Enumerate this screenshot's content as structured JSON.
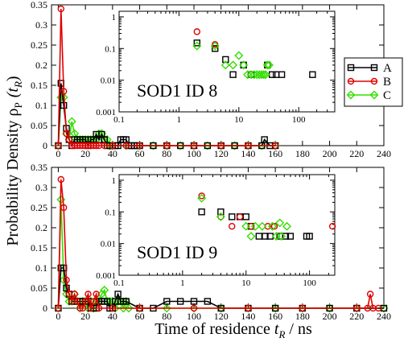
{
  "figure": {
    "ylabel_main": "Probability Density ρ",
    "ylabel_sub": "P",
    "ylabel_arg": "(t",
    "ylabel_argsub": "R",
    "ylabel_close": ")",
    "xlabel_main": "Time of residence ",
    "xlabel_var": "t",
    "xlabel_sub": "R",
    "xlabel_unit": " / ns"
  },
  "colors": {
    "A": "#000000",
    "B": "#e00000",
    "C": "#33dd00"
  },
  "chart_data": [
    {
      "type": "line",
      "panel": "top",
      "xlim": [
        -5,
        240
      ],
      "ylim": [
        0,
        0.35
      ],
      "xticks": [
        0,
        20,
        40,
        60,
        80,
        100,
        120,
        140,
        160,
        180,
        200,
        220,
        240
      ],
      "yticks": [
        0,
        0.05,
        0.1,
        0.15,
        0.2,
        0.25,
        0.3,
        0.35
      ],
      "ytick_labels": [
        "0",
        "0.05",
        "0.1",
        "0.15",
        "0.2",
        "0.25",
        "0.3",
        "0.35"
      ],
      "legend": [
        "A",
        "B",
        "C"
      ],
      "series": [
        {
          "name": "A",
          "marker": "square",
          "x": [
            0,
            2,
            4,
            6,
            8,
            10,
            12,
            14,
            16,
            18,
            20,
            22,
            24,
            26,
            28,
            30,
            32,
            34,
            36,
            38,
            40,
            42,
            44,
            46,
            48,
            50,
            52,
            54,
            56,
            58,
            60,
            70,
            80,
            90,
            100,
            110,
            120,
            130,
            140,
            150,
            152,
            156,
            160
          ],
          "y": [
            0,
            0.155,
            0.1,
            0.043,
            0.015,
            0,
            0.015,
            0.015,
            0.015,
            0.015,
            0.015,
            0,
            0.015,
            0.015,
            0.028,
            0.015,
            0.028,
            0.015,
            0,
            0,
            0,
            0,
            0,
            0.015,
            0.015,
            0.015,
            0,
            0,
            0,
            0,
            0,
            0,
            0,
            0,
            0,
            0,
            0,
            0,
            0,
            0,
            0.015,
            0,
            0
          ]
        },
        {
          "name": "B",
          "marker": "circle",
          "x": [
            0,
            2,
            4,
            6,
            8,
            10,
            12,
            14,
            16,
            18,
            20,
            22,
            24,
            26,
            28,
            30,
            34,
            40,
            50,
            60,
            80,
            100,
            120,
            140,
            160
          ],
          "y": [
            0,
            0.34,
            0.135,
            0.03,
            0.015,
            0,
            0,
            0,
            0,
            0,
            0,
            0,
            0,
            0,
            0,
            0,
            0,
            0,
            0,
            0,
            0,
            0,
            0,
            0,
            0
          ]
        },
        {
          "name": "C",
          "marker": "diamond",
          "x": [
            0,
            2,
            4,
            6,
            8,
            10,
            12,
            14,
            16,
            18,
            20,
            22,
            24,
            26,
            28,
            30,
            32,
            34,
            36,
            38,
            40,
            50,
            60,
            70,
            80,
            90,
            100,
            110,
            120,
            130,
            140,
            150,
            160
          ],
          "y": [
            0,
            0.12,
            0.12,
            0.03,
            0.015,
            0.06,
            0.03,
            0.015,
            0.015,
            0.015,
            0.015,
            0.015,
            0.015,
            0.015,
            0.015,
            0.03,
            0.03,
            0.015,
            0.015,
            0,
            0,
            0,
            0,
            0,
            0,
            0,
            0,
            0,
            0,
            0,
            0,
            0,
            0
          ]
        }
      ],
      "inset": {
        "type": "scatter",
        "label": "SOD1 ID 8",
        "xscale": "log",
        "yscale": "log",
        "xlim": [
          0.1,
          400
        ],
        "ylim": [
          0.001,
          1.5
        ],
        "xtick_labels": [
          "0.1",
          "1",
          "10",
          "100"
        ],
        "ytick_labels": [
          "0.001",
          "0.01",
          "0.1",
          "1"
        ],
        "series": [
          {
            "name": "A",
            "x": [
              2,
              4,
              6,
              8,
              12,
              16,
              30,
              36,
              42,
              52,
              170
            ],
            "y": [
              0.15,
              0.1,
              0.045,
              0.015,
              0.03,
              0.015,
              0.03,
              0.015,
              0.015,
              0.015,
              0.015
            ]
          },
          {
            "name": "B",
            "x": [
              2,
              4
            ],
            "y": [
              0.34,
              0.135
            ]
          },
          {
            "name": "C",
            "x": [
              2,
              4,
              6,
              8,
              10,
              12,
              14,
              16,
              18,
              20,
              22,
              24,
              26,
              28,
              30,
              32
            ],
            "y": [
              0.12,
              0.12,
              0.03,
              0.03,
              0.06,
              0.03,
              0.015,
              0.015,
              0.015,
              0.015,
              0.015,
              0.015,
              0.015,
              0.015,
              0.03,
              0.03
            ]
          }
        ]
      }
    },
    {
      "type": "line",
      "panel": "bottom",
      "xlim": [
        -5,
        240
      ],
      "ylim": [
        0,
        0.35
      ],
      "xticks": [
        0,
        20,
        40,
        60,
        80,
        100,
        120,
        140,
        160,
        180,
        200,
        220,
        240
      ],
      "yticks": [
        0,
        0.05,
        0.1,
        0.15,
        0.2,
        0.25,
        0.3,
        0.35
      ],
      "ytick_labels": [
        "0",
        "0.05",
        "0.1",
        "0.15",
        "0.2",
        "0.25",
        "0.3",
        "0.35"
      ],
      "series": [
        {
          "name": "A",
          "marker": "square",
          "x": [
            0,
            2,
            4,
            6,
            8,
            10,
            12,
            14,
            16,
            18,
            20,
            22,
            24,
            26,
            28,
            30,
            32,
            34,
            36,
            38,
            40,
            42,
            44,
            46,
            48,
            50,
            60,
            70,
            80,
            90,
            100,
            110,
            120,
            140,
            160,
            180,
            200,
            220,
            240
          ],
          "y": [
            0,
            0.1,
            0.1,
            0.05,
            0.035,
            0.017,
            0.017,
            0.017,
            0.017,
            0.017,
            0.017,
            0.017,
            0,
            0,
            0,
            0.017,
            0.017,
            0.017,
            0.017,
            0,
            0,
            0.017,
            0.035,
            0.017,
            0.017,
            0.017,
            0,
            0,
            0.017,
            0.017,
            0.017,
            0.017,
            0,
            0,
            0,
            0,
            0,
            0,
            0
          ]
        },
        {
          "name": "B",
          "marker": "circle",
          "x": [
            0,
            2,
            4,
            6,
            8,
            10,
            12,
            14,
            16,
            18,
            20,
            22,
            24,
            26,
            28,
            30,
            40,
            60,
            100,
            140,
            180,
            220,
            228,
            230,
            232,
            236
          ],
          "y": [
            0,
            0.32,
            0.25,
            0.07,
            0.035,
            0.017,
            0.035,
            0.017,
            0,
            0,
            0.017,
            0.035,
            0,
            0.017,
            0.035,
            0,
            0,
            0,
            0,
            0,
            0,
            0,
            0,
            0.035,
            0,
            0
          ]
        },
        {
          "name": "C",
          "marker": "diamond",
          "x": [
            0,
            2,
            4,
            6,
            8,
            10,
            12,
            14,
            16,
            18,
            20,
            22,
            24,
            26,
            28,
            30,
            32,
            34,
            36,
            38,
            40,
            42,
            44,
            46,
            48,
            50,
            52,
            60,
            80,
            100,
            120,
            140,
            160,
            180,
            200,
            220,
            240
          ],
          "y": [
            0,
            0.27,
            0.07,
            0.035,
            0.017,
            0.017,
            0.035,
            0.017,
            0,
            0.017,
            0.017,
            0,
            0.017,
            0,
            0.017,
            0.017,
            0.035,
            0.045,
            0.017,
            0.017,
            0.017,
            0,
            0.017,
            0.017,
            0,
            0.017,
            0,
            0,
            0,
            0,
            0,
            0,
            0,
            0,
            0,
            0,
            0
          ]
        }
      ],
      "inset": {
        "type": "scatter",
        "label": "SOD1 ID 9",
        "xscale": "log",
        "yscale": "log",
        "xlim": [
          0.1,
          250
        ],
        "ylim": [
          0.001,
          1.5
        ],
        "xtick_labels": [
          "0.1",
          "1",
          "10",
          "100"
        ],
        "ytick_labels": [
          "0.001",
          "0.01",
          "0.1",
          "1"
        ],
        "series": [
          {
            "name": "A",
            "x": [
              2,
              4,
              6,
              8,
              10,
              12,
              16,
              20,
              24,
              34,
              42,
              50,
              90,
              100
            ],
            "y": [
              0.1,
              0.1,
              0.07,
              0.07,
              0.07,
              0.035,
              0.017,
              0.017,
              0.017,
              0.017,
              0.017,
              0.017,
              0.017,
              0.017
            ]
          },
          {
            "name": "B",
            "x": [
              2,
              4,
              6,
              8,
              12,
              22,
              28,
              230
            ],
            "y": [
              0.32,
              0.07,
              0.035,
              0.07,
              0.035,
              0.035,
              0.035,
              0.035
            ]
          },
          {
            "name": "C",
            "x": [
              2,
              4,
              10,
              12,
              14,
              18,
              26,
              30,
              34,
              36,
              44
            ],
            "y": [
              0.27,
              0.07,
              0.035,
              0.017,
              0.035,
              0.035,
              0.035,
              0.017,
              0.045,
              0.017,
              0.035
            ]
          }
        ]
      }
    }
  ]
}
